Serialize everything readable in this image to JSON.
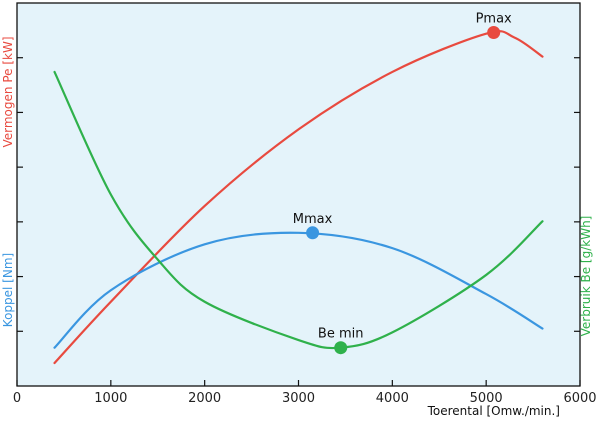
{
  "chart_data": {
    "type": "line",
    "background_color": "#e4f3fa",
    "x_axis": {
      "label": "Toerental [Omw./min.]",
      "range": [
        0,
        6000
      ],
      "ticks": [
        "0",
        "1000",
        "2000",
        "3000",
        "4000",
        "5000",
        "6000"
      ]
    },
    "left_axis_labels": [
      {
        "text": "Vermogen Pe [kW]",
        "color": "#e84a3f"
      },
      {
        "text": "Koppel [Nm]",
        "color": "#3a96e0"
      }
    ],
    "right_axis_label": {
      "text": "Verbruik Be [g/kWh]",
      "color": "#2fb14b"
    },
    "series": [
      {
        "key": "vermogen",
        "color": "#e84a3f",
        "x": [
          400,
          1000,
          2000,
          3000,
          4000,
          5000,
          5300,
          5600
        ],
        "y": [
          0.06,
          0.22,
          0.47,
          0.67,
          0.82,
          0.92,
          0.91,
          0.86
        ]
      },
      {
        "key": "koppel",
        "color": "#3a96e0",
        "x": [
          400,
          1000,
          2000,
          3000,
          4000,
          5000,
          5600
        ],
        "y": [
          0.1,
          0.25,
          0.37,
          0.4,
          0.36,
          0.24,
          0.15
        ]
      },
      {
        "key": "verbruik",
        "color": "#2fb14b",
        "x": [
          400,
          1000,
          1500,
          2000,
          3000,
          3450,
          4000,
          5000,
          5600
        ],
        "y": [
          0.82,
          0.5,
          0.33,
          0.22,
          0.12,
          0.1,
          0.14,
          0.29,
          0.43
        ]
      }
    ],
    "points": [
      {
        "label": "Pmax",
        "series": "vermogen",
        "x": 5080,
        "y": 0.923
      },
      {
        "label": "Mmax",
        "series": "koppel",
        "x": 3150,
        "y": 0.4
      },
      {
        "label": "Be min",
        "series": "verbruik",
        "x": 3450,
        "y": 0.1
      }
    ]
  }
}
